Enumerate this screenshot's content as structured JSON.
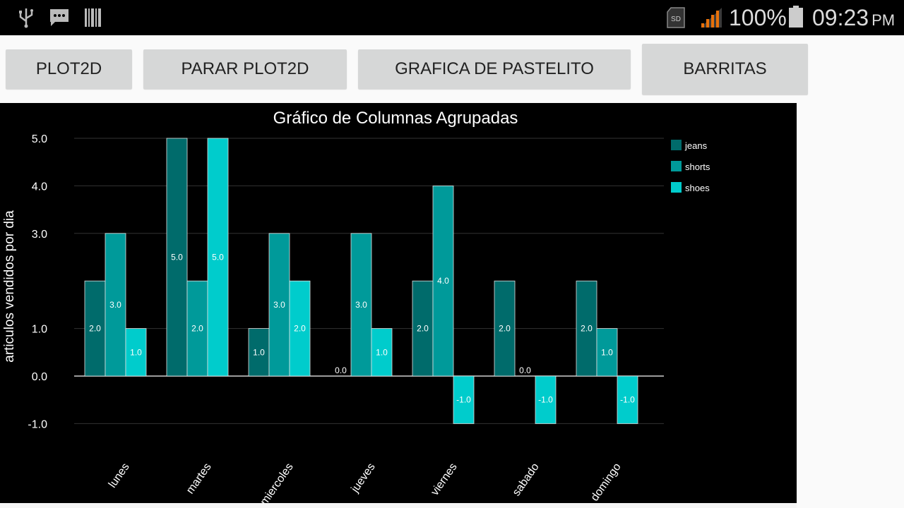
{
  "status_bar": {
    "icons": [
      "usb-icon",
      "message-icon",
      "barcode-icon",
      "sd-card-icon",
      "signal-icon",
      "battery-icon"
    ],
    "sd_label": "SD",
    "battery_percent": "100%",
    "time": "09:23",
    "ampm": "PM"
  },
  "buttons": {
    "plot2d": "PLOT2D",
    "parar_plot2d": "PARAR PLOT2D",
    "pastelito": "GRAFICA DE PASTELITO",
    "barritas": "BARRITAS"
  },
  "colors": {
    "jeans": "#006b6b",
    "shorts": "#009a9a",
    "shoes": "#00cccc",
    "chart_bg": "#000000",
    "grid": "#333333",
    "accent_signal": "#e8710a"
  },
  "chart_data": {
    "type": "bar",
    "title": "Gráfico de Columnas Agrupadas",
    "xlabel": "",
    "ylabel": "articulos vendidos por dia",
    "categories": [
      "lunes",
      "martes",
      "miercoles",
      "jueves",
      "viernes",
      "sabado",
      "domingo"
    ],
    "series": [
      {
        "name": "jeans",
        "values": [
          2.0,
          5.0,
          1.0,
          0.0,
          2.0,
          2.0,
          2.0
        ]
      },
      {
        "name": "shorts",
        "values": [
          3.0,
          2.0,
          3.0,
          3.0,
          4.0,
          0.0,
          1.0
        ]
      },
      {
        "name": "shoes",
        "values": [
          1.0,
          5.0,
          2.0,
          1.0,
          -1.0,
          -1.0,
          -1.0
        ]
      }
    ],
    "yticks": [
      "5.0",
      "4.0",
      "3.0",
      "1.0",
      "0.0",
      "-1.0"
    ],
    "ylim": [
      -1,
      5
    ],
    "grid": true,
    "legend": "top-right"
  }
}
